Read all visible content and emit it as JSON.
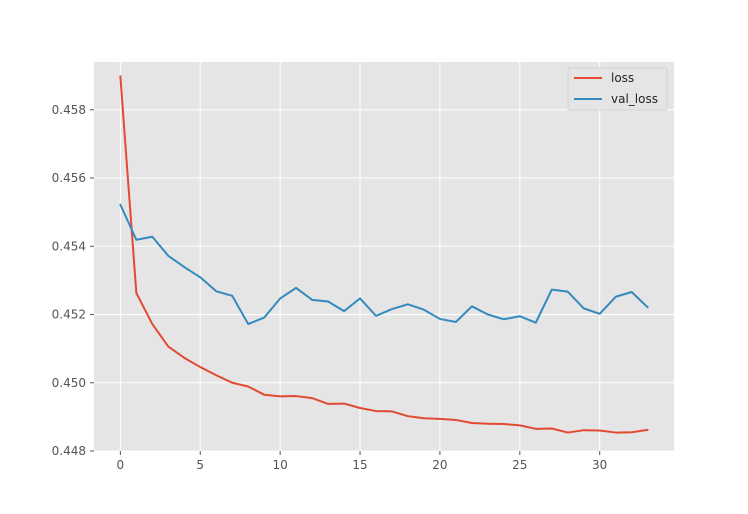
{
  "chart_data": {
    "type": "line",
    "title": "",
    "xlabel": "",
    "ylabel": "",
    "xlim": [
      -1.65,
      34.65
    ],
    "ylim": [
      0.448,
      0.4594
    ],
    "x_ticks": [
      0,
      5,
      10,
      15,
      20,
      25,
      30
    ],
    "x_tick_labels": [
      "0",
      "5",
      "10",
      "15",
      "20",
      "25",
      "30"
    ],
    "y_ticks": [
      0.448,
      0.45,
      0.452,
      0.454,
      0.456,
      0.458
    ],
    "y_tick_labels": [
      "0.448",
      "0.450",
      "0.452",
      "0.454",
      "0.456",
      "0.458"
    ],
    "grid": true,
    "legend_position": "top-right",
    "x": [
      0,
      1,
      2,
      3,
      4,
      5,
      6,
      7,
      8,
      9,
      10,
      11,
      12,
      13,
      14,
      15,
      16,
      17,
      18,
      19,
      20,
      21,
      22,
      23,
      24,
      25,
      26,
      27,
      28,
      29,
      30,
      31,
      32,
      33
    ],
    "series": [
      {
        "name": "loss",
        "color": "#e24a33",
        "values": [
          0.45898,
          0.45263,
          0.45172,
          0.45106,
          0.45073,
          0.45046,
          0.45022,
          0.45,
          0.44989,
          0.44965,
          0.4496,
          0.44961,
          0.44955,
          0.44938,
          0.44939,
          0.44926,
          0.44917,
          0.44916,
          0.44902,
          0.44896,
          0.44894,
          0.44891,
          0.44882,
          0.4488,
          0.44879,
          0.44875,
          0.44865,
          0.44866,
          0.44854,
          0.44861,
          0.4486,
          0.44854,
          0.44855,
          0.44862
        ]
      },
      {
        "name": "val_loss",
        "color": "#348abd",
        "values": [
          0.45522,
          0.45419,
          0.45428,
          0.45372,
          0.45339,
          0.45309,
          0.45268,
          0.45255,
          0.45172,
          0.45191,
          0.45247,
          0.45278,
          0.45243,
          0.45238,
          0.4521,
          0.45247,
          0.45196,
          0.45216,
          0.4523,
          0.45214,
          0.45187,
          0.45178,
          0.45224,
          0.452,
          0.45186,
          0.45195,
          0.45176,
          0.45273,
          0.45267,
          0.45218,
          0.45202,
          0.45252,
          0.45266,
          0.45221
        ]
      }
    ]
  }
}
